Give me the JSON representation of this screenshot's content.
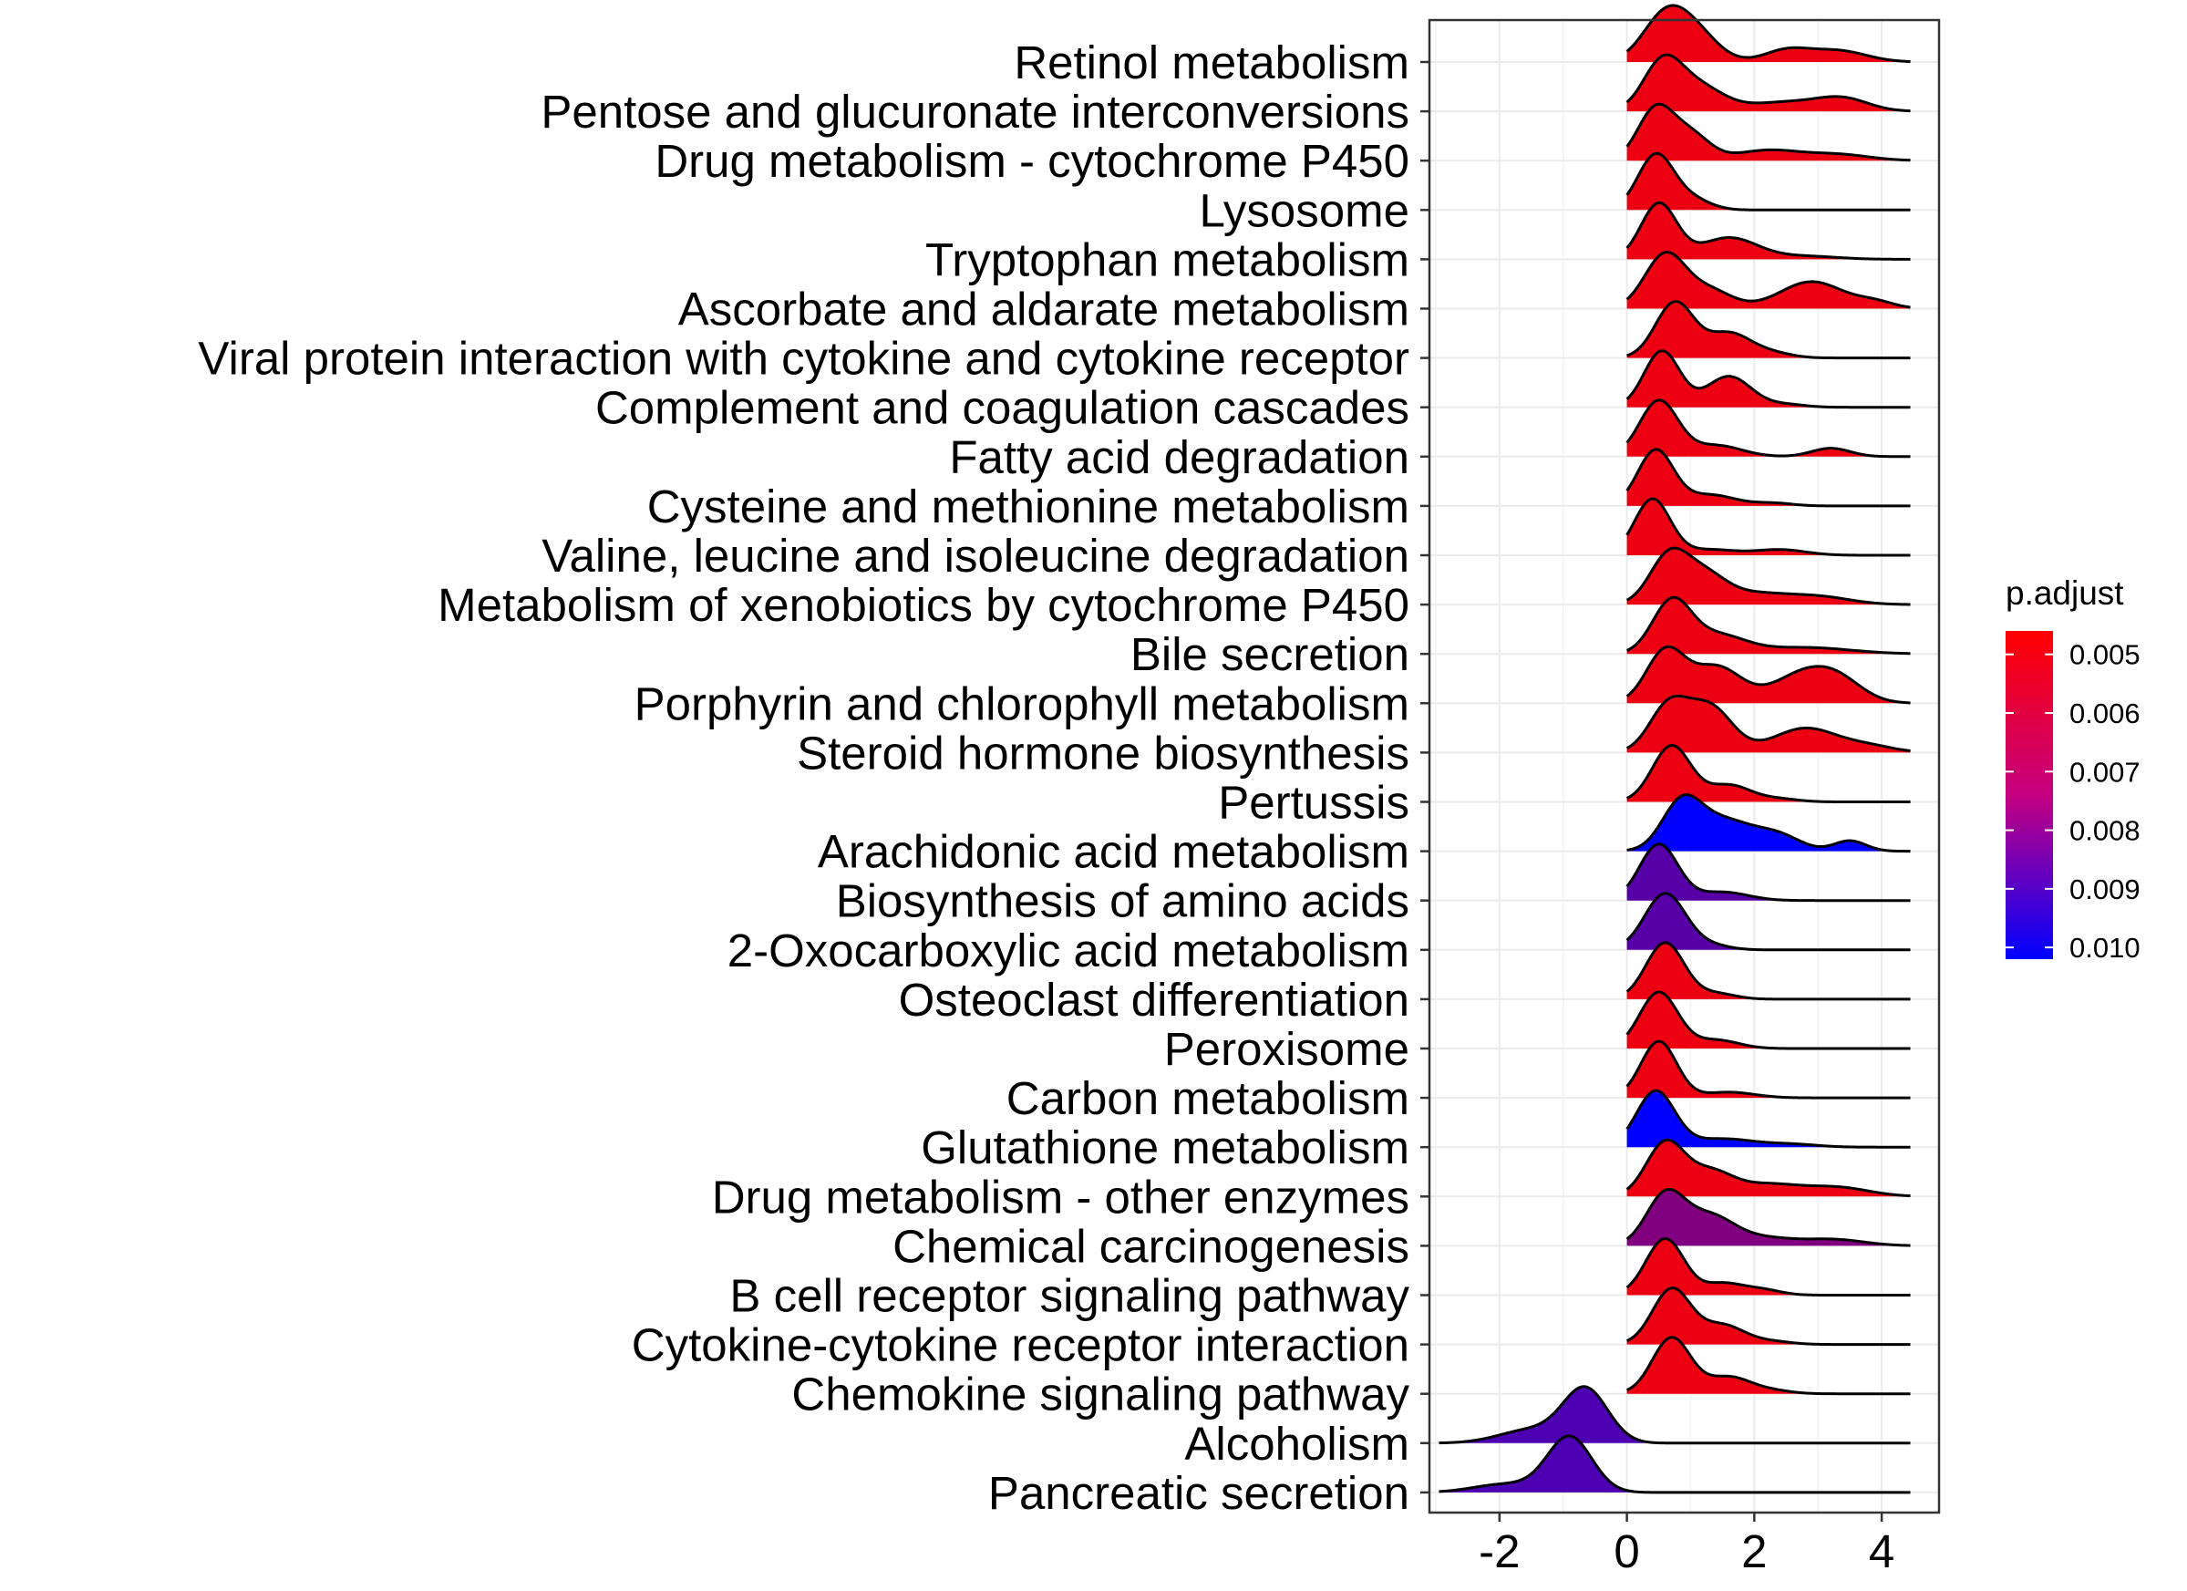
{
  "chart_data": {
    "type": "ridgeline",
    "xlim": [
      -3.1,
      4.9
    ],
    "x_ticks": [
      -2,
      0,
      2,
      4
    ],
    "x_tick_labels": [
      "-2",
      "0",
      "2",
      "4"
    ],
    "grid": true,
    "xlabel": "",
    "ylabel": "",
    "legend": {
      "title": "p.adjust",
      "placement": "right",
      "low_color": "#FF0000",
      "high_color": "#0000FF",
      "range": [
        0.0046,
        0.0102
      ],
      "ticks": [
        0.005,
        0.006,
        0.007,
        0.008,
        0.009,
        0.01
      ],
      "tick_labels": [
        "0.005",
        "0.006",
        "0.007",
        "0.008",
        "0.009",
        "0.010"
      ]
    },
    "categories": [
      "Retinol metabolism",
      "Pentose and glucuronate interconversions",
      "Drug metabolism - cytochrome P450",
      "Lysosome",
      "Tryptophan metabolism",
      "Ascorbate and aldarate metabolism",
      "Viral protein interaction with cytokine and cytokine receptor",
      "Complement and coagulation cascades",
      "Fatty acid degradation",
      "Cysteine and methionine metabolism",
      "Valine, leucine and isoleucine degradation",
      "Metabolism of xenobiotics by cytochrome P450",
      "Bile secretion",
      "Porphyrin and chlorophyll metabolism",
      "Steroid hormone biosynthesis",
      "Pertussis",
      "Arachidonic acid metabolism",
      "Biosynthesis of amino acids",
      "2-Oxocarboxylic acid metabolism",
      "Osteoclast differentiation",
      "Peroxisome",
      "Carbon metabolism",
      "Glutathione metabolism",
      "Drug metabolism - other enzymes",
      "Chemical carcinogenesis",
      "B cell receptor signaling pathway",
      "Cytokine-cytokine receptor interaction",
      "Chemokine signaling pathway",
      "Alcoholism",
      "Pancreatic secretion"
    ],
    "series": [
      {
        "p_adjust": 0.005,
        "x_min": 0.0,
        "x_max": 4.45,
        "peaks": [
          [
            0.6,
            1.0,
            0.35
          ],
          [
            1.1,
            0.55,
            0.35
          ],
          [
            2.5,
            0.25,
            0.35
          ],
          [
            3.3,
            0.25,
            0.45
          ]
        ]
      },
      {
        "p_adjust": 0.005,
        "x_min": 0.0,
        "x_max": 4.45,
        "peaks": [
          [
            0.55,
            1.0,
            0.3
          ],
          [
            1.1,
            0.55,
            0.4
          ],
          [
            2.5,
            0.2,
            0.6
          ],
          [
            3.4,
            0.25,
            0.4
          ]
        ]
      },
      {
        "p_adjust": 0.005,
        "x_min": 0.0,
        "x_max": 4.45,
        "peaks": [
          [
            0.45,
            1.0,
            0.28
          ],
          [
            1.0,
            0.5,
            0.3
          ],
          [
            2.2,
            0.2,
            0.5
          ],
          [
            3.3,
            0.12,
            0.5
          ]
        ]
      },
      {
        "p_adjust": 0.005,
        "x_min": 0.0,
        "x_max": 4.45,
        "peaks": [
          [
            0.45,
            1.0,
            0.28
          ],
          [
            1.0,
            0.2,
            0.3
          ]
        ]
      },
      {
        "p_adjust": 0.005,
        "x_min": 0.0,
        "x_max": 4.45,
        "peaks": [
          [
            0.5,
            0.9,
            0.28
          ],
          [
            1.6,
            0.35,
            0.45
          ],
          [
            2.8,
            0.05,
            0.5
          ]
        ]
      },
      {
        "p_adjust": 0.005,
        "x_min": 0.0,
        "x_max": 4.45,
        "peaks": [
          [
            0.6,
            0.9,
            0.32
          ],
          [
            1.3,
            0.3,
            0.35
          ],
          [
            2.9,
            0.45,
            0.5
          ],
          [
            3.9,
            0.1,
            0.3
          ]
        ]
      },
      {
        "p_adjust": 0.005,
        "x_min": 0.0,
        "x_max": 4.45,
        "peaks": [
          [
            0.75,
            1.0,
            0.3
          ],
          [
            1.6,
            0.45,
            0.35
          ],
          [
            2.3,
            0.08,
            0.3
          ]
        ]
      },
      {
        "p_adjust": 0.005,
        "x_min": 0.0,
        "x_max": 4.45,
        "peaks": [
          [
            0.55,
            1.0,
            0.28
          ],
          [
            1.6,
            0.55,
            0.35
          ],
          [
            2.5,
            0.05,
            0.3
          ]
        ]
      },
      {
        "p_adjust": 0.005,
        "x_min": 0.0,
        "x_max": 4.45,
        "peaks": [
          [
            0.5,
            1.0,
            0.3
          ],
          [
            1.4,
            0.2,
            0.4
          ],
          [
            3.2,
            0.15,
            0.3
          ]
        ]
      },
      {
        "p_adjust": 0.005,
        "x_min": 0.0,
        "x_max": 4.45,
        "peaks": [
          [
            0.45,
            1.0,
            0.28
          ],
          [
            1.3,
            0.2,
            0.4
          ],
          [
            2.3,
            0.05,
            0.3
          ]
        ]
      },
      {
        "p_adjust": 0.005,
        "x_min": 0.0,
        "x_max": 4.45,
        "peaks": [
          [
            0.4,
            1.0,
            0.28
          ],
          [
            1.3,
            0.1,
            0.4
          ],
          [
            2.4,
            0.1,
            0.4
          ]
        ]
      },
      {
        "p_adjust": 0.005,
        "x_min": 0.0,
        "x_max": 4.45,
        "peaks": [
          [
            0.65,
            0.9,
            0.3
          ],
          [
            1.2,
            0.55,
            0.35
          ],
          [
            2.0,
            0.2,
            0.5
          ],
          [
            3.0,
            0.15,
            0.5
          ]
        ]
      },
      {
        "p_adjust": 0.005,
        "x_min": 0.0,
        "x_max": 4.45,
        "peaks": [
          [
            0.7,
            0.95,
            0.3
          ],
          [
            1.4,
            0.35,
            0.45
          ],
          [
            2.8,
            0.12,
            0.7
          ]
        ]
      },
      {
        "p_adjust": 0.005,
        "x_min": 0.0,
        "x_max": 4.45,
        "peaks": [
          [
            0.6,
            0.7,
            0.3
          ],
          [
            1.4,
            0.5,
            0.4
          ],
          [
            2.7,
            0.35,
            0.45
          ],
          [
            3.3,
            0.3,
            0.4
          ]
        ]
      },
      {
        "p_adjust": 0.005,
        "x_min": 0.0,
        "x_max": 4.45,
        "peaks": [
          [
            0.65,
            0.75,
            0.3
          ],
          [
            1.3,
            0.75,
            0.35
          ],
          [
            2.8,
            0.4,
            0.5
          ],
          [
            3.8,
            0.1,
            0.4
          ]
        ]
      },
      {
        "p_adjust": 0.005,
        "x_min": 0.0,
        "x_max": 4.45,
        "peaks": [
          [
            0.7,
            1.0,
            0.3
          ],
          [
            1.6,
            0.3,
            0.35
          ],
          [
            2.4,
            0.05,
            0.3
          ]
        ]
      },
      {
        "p_adjust": 0.0102,
        "x_min": 0.0,
        "x_max": 4.45,
        "peaks": [
          [
            0.85,
            0.8,
            0.3
          ],
          [
            1.5,
            0.6,
            0.5
          ],
          [
            2.4,
            0.25,
            0.35
          ],
          [
            3.5,
            0.2,
            0.25
          ]
        ]
      },
      {
        "p_adjust": 0.0083,
        "x_min": 0.0,
        "x_max": 4.45,
        "peaks": [
          [
            0.5,
            1.0,
            0.3
          ],
          [
            1.5,
            0.15,
            0.4
          ]
        ]
      },
      {
        "p_adjust": 0.0083,
        "x_min": 0.0,
        "x_max": 4.45,
        "peaks": [
          [
            0.6,
            1.0,
            0.32
          ],
          [
            1.3,
            0.08,
            0.3
          ]
        ]
      },
      {
        "p_adjust": 0.005,
        "x_min": 0.0,
        "x_max": 4.45,
        "peaks": [
          [
            0.6,
            1.0,
            0.3
          ],
          [
            1.4,
            0.1,
            0.3
          ]
        ]
      },
      {
        "p_adjust": 0.005,
        "x_min": 0.0,
        "x_max": 4.45,
        "peaks": [
          [
            0.5,
            1.0,
            0.3
          ],
          [
            1.4,
            0.15,
            0.35
          ]
        ]
      },
      {
        "p_adjust": 0.005,
        "x_min": 0.0,
        "x_max": 4.45,
        "peaks": [
          [
            0.5,
            1.0,
            0.28
          ],
          [
            1.6,
            0.1,
            0.4
          ]
        ]
      },
      {
        "p_adjust": 0.0102,
        "x_min": 0.0,
        "x_max": 4.45,
        "peaks": [
          [
            0.45,
            1.0,
            0.3
          ],
          [
            1.5,
            0.15,
            0.5
          ],
          [
            2.6,
            0.05,
            0.4
          ]
        ]
      },
      {
        "p_adjust": 0.005,
        "x_min": 0.0,
        "x_max": 4.45,
        "peaks": [
          [
            0.6,
            0.9,
            0.3
          ],
          [
            1.3,
            0.4,
            0.35
          ],
          [
            2.2,
            0.2,
            0.5
          ],
          [
            3.3,
            0.15,
            0.5
          ]
        ]
      },
      {
        "p_adjust": 0.0074,
        "x_min": 0.0,
        "x_max": 4.45,
        "peaks": [
          [
            0.6,
            0.9,
            0.3
          ],
          [
            1.3,
            0.55,
            0.4
          ],
          [
            2.2,
            0.12,
            0.4
          ],
          [
            3.2,
            0.12,
            0.5
          ]
        ]
      },
      {
        "p_adjust": 0.005,
        "x_min": 0.0,
        "x_max": 4.45,
        "peaks": [
          [
            0.6,
            1.0,
            0.3
          ],
          [
            1.5,
            0.2,
            0.3
          ],
          [
            2.1,
            0.1,
            0.3
          ]
        ]
      },
      {
        "p_adjust": 0.005,
        "x_min": 0.0,
        "x_max": 4.45,
        "peaks": [
          [
            0.7,
            1.0,
            0.3
          ],
          [
            1.5,
            0.35,
            0.35
          ],
          [
            2.3,
            0.05,
            0.3
          ]
        ]
      },
      {
        "p_adjust": 0.005,
        "x_min": 0.0,
        "x_max": 4.45,
        "peaks": [
          [
            0.7,
            1.0,
            0.3
          ],
          [
            1.6,
            0.3,
            0.35
          ],
          [
            2.3,
            0.05,
            0.3
          ]
        ]
      },
      {
        "p_adjust": 0.0085,
        "x_min": -2.95,
        "x_max": 4.45,
        "peaks": [
          [
            -0.65,
            1.0,
            0.35
          ],
          [
            -1.5,
            0.25,
            0.5
          ]
        ]
      },
      {
        "p_adjust": 0.0085,
        "x_min": -2.95,
        "x_max": 4.45,
        "peaks": [
          [
            -0.9,
            1.0,
            0.35
          ],
          [
            -1.9,
            0.15,
            0.5
          ]
        ]
      }
    ]
  }
}
